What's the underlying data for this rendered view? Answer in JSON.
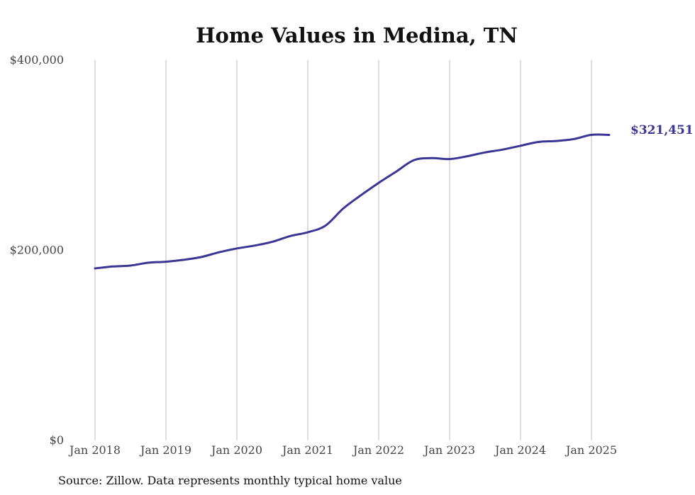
{
  "chart_data": {
    "type": "line",
    "title": "Home Values in Medina, TN",
    "xlabel": "",
    "ylabel": "",
    "ylim": [
      0,
      400000
    ],
    "yticks": [
      {
        "value": 0,
        "label": "$0"
      },
      {
        "value": 200000,
        "label": "$200,000"
      },
      {
        "value": 400000,
        "label": "$400,000"
      }
    ],
    "xticks": [
      {
        "value": 2018,
        "label": "Jan 2018"
      },
      {
        "value": 2019,
        "label": "Jan 2019"
      },
      {
        "value": 2020,
        "label": "Jan 2020"
      },
      {
        "value": 2021,
        "label": "Jan 2021"
      },
      {
        "value": 2022,
        "label": "Jan 2022"
      },
      {
        "value": 2023,
        "label": "Jan 2023"
      },
      {
        "value": 2024,
        "label": "Jan 2024"
      },
      {
        "value": 2025,
        "label": "Jan 2025"
      }
    ],
    "grid": {
      "vertical": true,
      "horizontal": false
    },
    "series": [
      {
        "color": "#3b3594",
        "x": [
          "2018-01",
          "2018-04",
          "2018-07",
          "2018-10",
          "2019-01",
          "2019-04",
          "2019-07",
          "2019-10",
          "2020-01",
          "2020-04",
          "2020-07",
          "2020-10",
          "2021-01",
          "2021-04",
          "2021-07",
          "2021-10",
          "2022-01",
          "2022-04",
          "2022-07",
          "2022-10",
          "2023-01",
          "2023-04",
          "2023-07",
          "2023-10",
          "2024-01",
          "2024-04",
          "2024-07",
          "2024-10",
          "2025-01",
          "2025-04"
        ],
        "values": [
          181000,
          183000,
          184000,
          187000,
          188000,
          190000,
          193000,
          198000,
          202000,
          205000,
          209000,
          215000,
          219000,
          226000,
          244000,
          258000,
          271000,
          283000,
          295000,
          297000,
          296000,
          299000,
          303000,
          306000,
          310000,
          314000,
          315000,
          317000,
          321500,
          321451
        ]
      }
    ],
    "end_label": "$321,451",
    "source": "Source: Zillow. Data represents monthly typical home value"
  }
}
